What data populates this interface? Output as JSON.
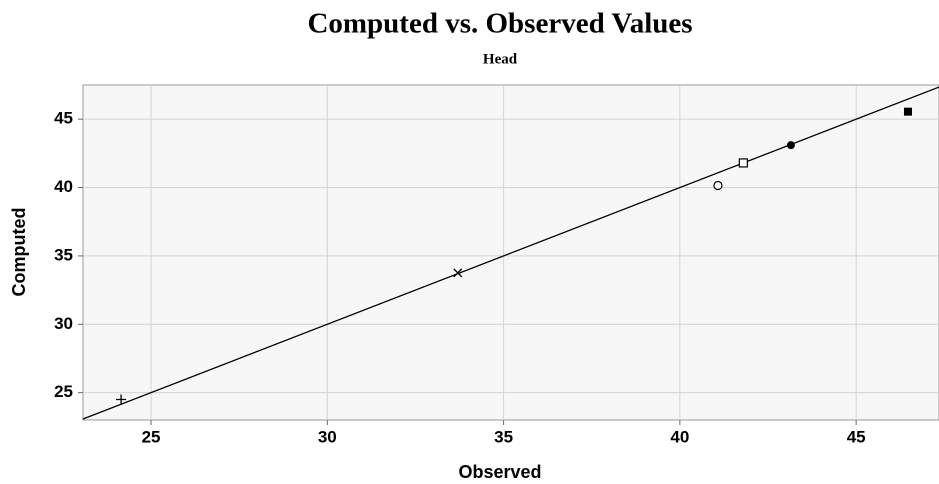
{
  "chart_data": {
    "type": "scatter",
    "title": "Computed vs. Observed Values",
    "subtitle": "Head",
    "x_label": "Observed",
    "y_label": "Computed",
    "x": [
      24.15,
      33.7,
      41.08,
      41.8,
      43.15,
      46.47
    ],
    "values": [
      24.5,
      33.76,
      40.15,
      41.8,
      43.1,
      45.55
    ],
    "markers": [
      "plus",
      "cross",
      "circle",
      "square",
      "dot",
      "filled-square"
    ],
    "color": "#000000",
    "diagonal": true,
    "xlim": [
      23.07,
      47.35
    ],
    "xticks": [
      25,
      30,
      35,
      40,
      45
    ],
    "ylim": [
      23.0,
      47.5
    ],
    "yticks": [
      25,
      30,
      35,
      40,
      45
    ],
    "grid": true
  }
}
